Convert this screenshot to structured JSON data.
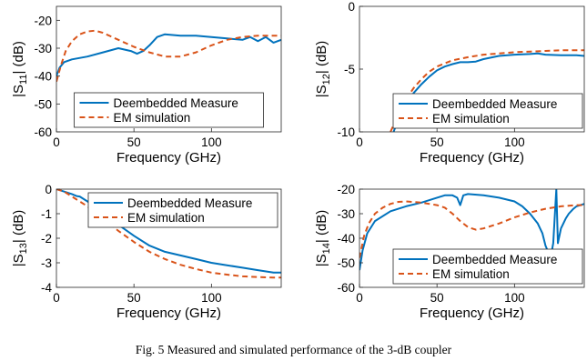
{
  "caption": "Fig. 5 Measured and simulated performance of the 3-dB coupler",
  "colors": {
    "measure": "#0072BD",
    "simulation": "#D95319"
  },
  "chart_data": [
    {
      "type": "line",
      "xlabel": "Frequency (GHz)",
      "ylabel": {
        "pre": "|S",
        "sub": "11",
        "post": "| (dB)"
      },
      "xlim": [
        0,
        145
      ],
      "ylim": [
        -60,
        -15
      ],
      "xticks": [
        0,
        50,
        100
      ],
      "yticks": [
        -60,
        -50,
        -40,
        -30,
        -20
      ],
      "legend": "bottom-center",
      "series": [
        {
          "name": "Deembedded Measure",
          "style": "solid",
          "x": [
            0,
            2,
            5,
            10,
            20,
            30,
            40,
            48,
            52,
            56,
            60,
            65,
            70,
            80,
            90,
            100,
            110,
            120,
            125,
            130,
            135,
            140,
            145
          ],
          "y": [
            -40,
            -37,
            -35,
            -34,
            -33,
            -31.5,
            -30,
            -31,
            -32,
            -31,
            -29,
            -26,
            -25,
            -25.5,
            -25.5,
            -26,
            -26.5,
            -27,
            -26,
            -27.5,
            -26,
            -28,
            -27
          ]
        },
        {
          "name": "EM simulation",
          "style": "dashed",
          "x": [
            0,
            3,
            6,
            10,
            15,
            20,
            25,
            30,
            40,
            50,
            60,
            70,
            80,
            90,
            100,
            110,
            120,
            130,
            140,
            145
          ],
          "y": [
            -42,
            -36,
            -31,
            -27.5,
            -25,
            -24,
            -23.7,
            -24.5,
            -27,
            -29.5,
            -31.5,
            -33,
            -33,
            -31.5,
            -29,
            -27,
            -26,
            -25.5,
            -25.5,
            -25.5
          ]
        }
      ]
    },
    {
      "type": "line",
      "xlabel": "Frequency (GHz)",
      "ylabel": {
        "pre": "|S",
        "sub": "12",
        "post": "| (dB)"
      },
      "xlim": [
        0,
        145
      ],
      "ylim": [
        -10,
        0
      ],
      "xticks": [
        0,
        50,
        100
      ],
      "yticks": [
        -10,
        -5,
        0
      ],
      "legend": "bottom-right",
      "series": [
        {
          "name": "Deembedded Measure",
          "style": "solid",
          "x": [
            22,
            25,
            30,
            35,
            40,
            45,
            50,
            55,
            60,
            65,
            70,
            75,
            80,
            90,
            100,
            110,
            115,
            120,
            130,
            140,
            145
          ],
          "y": [
            -10,
            -9,
            -7.8,
            -6.9,
            -6.2,
            -5.6,
            -5.1,
            -4.8,
            -4.6,
            -4.45,
            -4.45,
            -4.4,
            -4.2,
            -3.95,
            -3.85,
            -3.8,
            -3.75,
            -3.85,
            -3.9,
            -3.9,
            -3.95
          ]
        },
        {
          "name": "EM simulation",
          "style": "dashed",
          "x": [
            20,
            25,
            30,
            35,
            40,
            45,
            50,
            60,
            70,
            80,
            90,
            100,
            110,
            120,
            130,
            140,
            145
          ],
          "y": [
            -10,
            -8.6,
            -7.4,
            -6.5,
            -5.8,
            -5.2,
            -4.8,
            -4.3,
            -4.05,
            -3.85,
            -3.75,
            -3.65,
            -3.6,
            -3.55,
            -3.5,
            -3.5,
            -3.5
          ]
        }
      ]
    },
    {
      "type": "line",
      "xlabel": "Frequency (GHz)",
      "ylabel": {
        "pre": "|S",
        "sub": "13",
        "post": "| (dB)"
      },
      "xlim": [
        0,
        145
      ],
      "ylim": [
        -4,
        0
      ],
      "xticks": [
        0,
        50,
        100
      ],
      "yticks": [
        -4,
        -3,
        -2,
        -1,
        0
      ],
      "legend": "top-right",
      "series": [
        {
          "name": "Deembedded Measure",
          "style": "solid",
          "x": [
            0,
            5,
            10,
            13,
            15,
            20,
            30,
            40,
            50,
            60,
            70,
            80,
            90,
            100,
            110,
            120,
            130,
            140,
            145
          ],
          "y": [
            0,
            -0.1,
            -0.2,
            -0.28,
            -0.3,
            -0.5,
            -0.95,
            -1.45,
            -1.9,
            -2.3,
            -2.55,
            -2.7,
            -2.85,
            -3.0,
            -3.1,
            -3.2,
            -3.3,
            -3.4,
            -3.4
          ]
        },
        {
          "name": "EM simulation",
          "style": "dashed",
          "x": [
            0,
            5,
            10,
            20,
            30,
            40,
            50,
            60,
            70,
            80,
            90,
            100,
            110,
            120,
            130,
            140,
            145
          ],
          "y": [
            0,
            -0.1,
            -0.3,
            -0.7,
            -1.2,
            -1.7,
            -2.15,
            -2.55,
            -2.85,
            -3.08,
            -3.25,
            -3.4,
            -3.48,
            -3.55,
            -3.58,
            -3.6,
            -3.6
          ]
        }
      ]
    },
    {
      "type": "line",
      "xlabel": "Frequency (GHz)",
      "ylabel": {
        "pre": "|S",
        "sub": "14",
        "post": "| (dB)"
      },
      "xlim": [
        0,
        145
      ],
      "ylim": [
        -60,
        -20
      ],
      "xticks": [
        0,
        50,
        100
      ],
      "yticks": [
        -60,
        -50,
        -40,
        -30,
        -20
      ],
      "legend": "bottom-right",
      "series": [
        {
          "name": "Deembedded Measure",
          "style": "solid",
          "x": [
            0,
            2,
            5,
            10,
            20,
            30,
            40,
            50,
            55,
            60,
            63,
            65,
            67,
            70,
            80,
            90,
            100,
            105,
            110,
            115,
            118,
            120,
            122,
            123,
            125,
            127,
            128,
            130,
            133,
            135,
            138,
            140,
            145
          ],
          "y": [
            -53,
            -45,
            -38,
            -33,
            -29,
            -27,
            -25.5,
            -23.5,
            -22.5,
            -22.5,
            -23.5,
            -26.5,
            -22.5,
            -22,
            -22.5,
            -23.5,
            -25,
            -27,
            -30,
            -34,
            -38,
            -43,
            -46,
            -49,
            -42,
            -20,
            -42,
            -36,
            -32,
            -30,
            -28,
            -27,
            -26
          ]
        },
        {
          "name": "EM simulation",
          "style": "dashed",
          "x": [
            0,
            3,
            6,
            10,
            15,
            20,
            25,
            30,
            40,
            50,
            55,
            60,
            65,
            70,
            75,
            80,
            90,
            100,
            110,
            120,
            130,
            140,
            145
          ],
          "y": [
            -48,
            -39,
            -34,
            -30,
            -27.5,
            -26,
            -25.2,
            -25,
            -25.5,
            -26.5,
            -27.5,
            -30,
            -33,
            -35.5,
            -36.5,
            -36,
            -34,
            -31.5,
            -29.5,
            -28,
            -27,
            -26.5,
            -26.5
          ]
        }
      ]
    }
  ]
}
